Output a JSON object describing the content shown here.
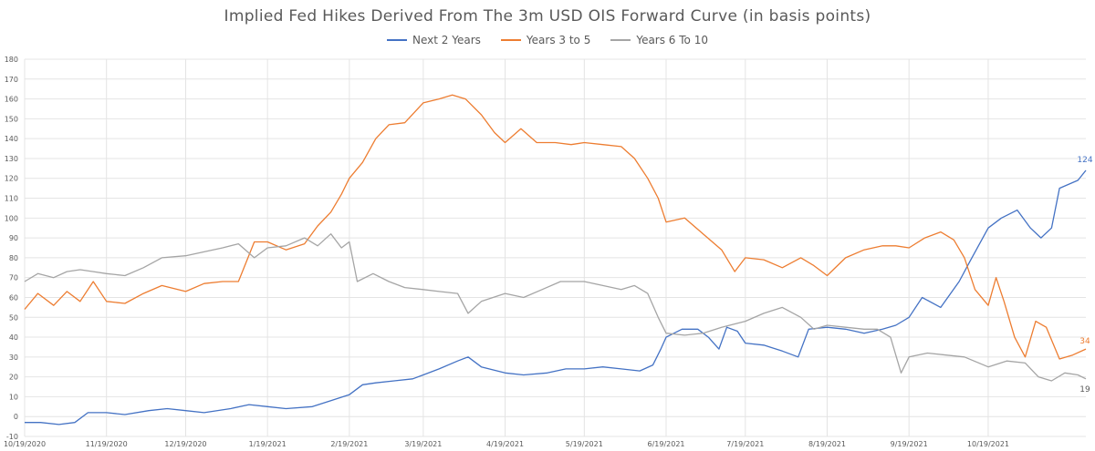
{
  "chart_data": {
    "type": "line",
    "title": "Implied Fed Hikes Derived From The 3m USD OIS Forward Curve (in basis points)",
    "xlabel": "",
    "ylabel": "",
    "ylim": [
      -10,
      180
    ],
    "y_ticks": [
      "180",
      "170",
      "160",
      "150",
      "140",
      "130",
      "120",
      "110",
      "100",
      "90",
      "80",
      "70",
      "60",
      "50",
      "40",
      "30",
      "20",
      "10",
      "0",
      "-10"
    ],
    "x_ticks": [
      "10/19/2020",
      "11/19/2020",
      "12/19/2020",
      "1/19/2021",
      "2/19/2021",
      "3/19/2021",
      "4/19/2021",
      "5/19/2021",
      "6/19/2021",
      "7/19/2021",
      "8/19/2021",
      "9/19/2021",
      "10/19/2021"
    ],
    "grid": true,
    "legend_position": "top",
    "series": [
      {
        "name": "Next 2 Years",
        "color": "#4472c4",
        "end_label": "124",
        "points": [
          [
            "2020-10-19",
            -3
          ],
          [
            "2020-10-25",
            -3
          ],
          [
            "2020-11-01",
            -4
          ],
          [
            "2020-11-07",
            -3
          ],
          [
            "2020-11-12",
            2
          ],
          [
            "2020-11-19",
            2
          ],
          [
            "2020-11-26",
            1
          ],
          [
            "2020-12-05",
            3
          ],
          [
            "2020-12-12",
            4
          ],
          [
            "2020-12-19",
            3
          ],
          [
            "2020-12-26",
            2
          ],
          [
            "2021-01-05",
            4
          ],
          [
            "2021-01-12",
            6
          ],
          [
            "2021-01-19",
            5
          ],
          [
            "2021-01-26",
            4
          ],
          [
            "2021-02-05",
            5
          ],
          [
            "2021-02-12",
            8
          ],
          [
            "2021-02-19",
            11
          ],
          [
            "2021-02-24",
            16
          ],
          [
            "2021-03-01",
            17
          ],
          [
            "2021-03-08",
            18
          ],
          [
            "2021-03-15",
            19
          ],
          [
            "2021-03-19",
            21
          ],
          [
            "2021-03-25",
            24
          ],
          [
            "2021-04-01",
            28
          ],
          [
            "2021-04-05",
            30
          ],
          [
            "2021-04-10",
            25
          ],
          [
            "2021-04-19",
            22
          ],
          [
            "2021-04-26",
            21
          ],
          [
            "2021-05-05",
            22
          ],
          [
            "2021-05-12",
            24
          ],
          [
            "2021-05-19",
            24
          ],
          [
            "2021-05-26",
            25
          ],
          [
            "2021-06-02",
            24
          ],
          [
            "2021-06-09",
            23
          ],
          [
            "2021-06-14",
            26
          ],
          [
            "2021-06-17",
            34
          ],
          [
            "2021-06-19",
            40
          ],
          [
            "2021-06-25",
            44
          ],
          [
            "2021-07-01",
            44
          ],
          [
            "2021-07-05",
            40
          ],
          [
            "2021-07-09",
            34
          ],
          [
            "2021-07-12",
            45
          ],
          [
            "2021-07-16",
            43
          ],
          [
            "2021-07-19",
            37
          ],
          [
            "2021-07-26",
            36
          ],
          [
            "2021-08-02",
            33
          ],
          [
            "2021-08-08",
            30
          ],
          [
            "2021-08-12",
            44
          ],
          [
            "2021-08-19",
            45
          ],
          [
            "2021-08-26",
            44
          ],
          [
            "2021-09-02",
            42
          ],
          [
            "2021-09-09",
            44
          ],
          [
            "2021-09-14",
            46
          ],
          [
            "2021-09-19",
            50
          ],
          [
            "2021-09-24",
            60
          ],
          [
            "2021-10-01",
            55
          ],
          [
            "2021-10-08",
            68
          ],
          [
            "2021-10-12",
            78
          ],
          [
            "2021-10-19",
            95
          ],
          [
            "2021-10-24",
            100
          ],
          [
            "2021-10-30",
            104
          ],
          [
            "2021-11-04",
            95
          ],
          [
            "2021-11-08",
            90
          ],
          [
            "2021-11-12",
            95
          ],
          [
            "2021-11-15",
            115
          ],
          [
            "2021-11-22",
            119
          ],
          [
            "2021-11-25",
            124
          ]
        ]
      },
      {
        "name": "Years 3 to 5",
        "color": "#ed7d31",
        "end_label": "34",
        "points": [
          [
            "2020-10-19",
            54
          ],
          [
            "2020-10-24",
            62
          ],
          [
            "2020-10-30",
            56
          ],
          [
            "2020-11-04",
            63
          ],
          [
            "2020-11-09",
            58
          ],
          [
            "2020-11-14",
            68
          ],
          [
            "2020-11-19",
            58
          ],
          [
            "2020-11-26",
            57
          ],
          [
            "2020-12-03",
            62
          ],
          [
            "2020-12-10",
            66
          ],
          [
            "2020-12-19",
            63
          ],
          [
            "2020-12-26",
            67
          ],
          [
            "2021-01-02",
            68
          ],
          [
            "2021-01-08",
            68
          ],
          [
            "2021-01-14",
            88
          ],
          [
            "2021-01-19",
            88
          ],
          [
            "2021-01-26",
            84
          ],
          [
            "2021-02-02",
            87
          ],
          [
            "2021-02-07",
            96
          ],
          [
            "2021-02-12",
            103
          ],
          [
            "2021-02-16",
            112
          ],
          [
            "2021-02-19",
            120
          ],
          [
            "2021-02-24",
            128
          ],
          [
            "2021-03-01",
            140
          ],
          [
            "2021-03-06",
            147
          ],
          [
            "2021-03-12",
            148
          ],
          [
            "2021-03-19",
            158
          ],
          [
            "2021-03-25",
            160
          ],
          [
            "2021-03-30",
            162
          ],
          [
            "2021-04-04",
            160
          ],
          [
            "2021-04-10",
            152
          ],
          [
            "2021-04-15",
            143
          ],
          [
            "2021-04-19",
            138
          ],
          [
            "2021-04-25",
            145
          ],
          [
            "2021-05-01",
            138
          ],
          [
            "2021-05-08",
            138
          ],
          [
            "2021-05-14",
            137
          ],
          [
            "2021-05-19",
            138
          ],
          [
            "2021-05-26",
            137
          ],
          [
            "2021-06-02",
            136
          ],
          [
            "2021-06-07",
            130
          ],
          [
            "2021-06-12",
            120
          ],
          [
            "2021-06-16",
            110
          ],
          [
            "2021-06-19",
            98
          ],
          [
            "2021-06-26",
            100
          ],
          [
            "2021-07-03",
            92
          ],
          [
            "2021-07-10",
            84
          ],
          [
            "2021-07-15",
            73
          ],
          [
            "2021-07-19",
            80
          ],
          [
            "2021-07-26",
            79
          ],
          [
            "2021-08-02",
            75
          ],
          [
            "2021-08-09",
            80
          ],
          [
            "2021-08-14",
            76
          ],
          [
            "2021-08-19",
            71
          ],
          [
            "2021-08-26",
            80
          ],
          [
            "2021-09-02",
            84
          ],
          [
            "2021-09-09",
            86
          ],
          [
            "2021-09-14",
            86
          ],
          [
            "2021-09-19",
            85
          ],
          [
            "2021-09-25",
            90
          ],
          [
            "2021-10-01",
            93
          ],
          [
            "2021-10-06",
            89
          ],
          [
            "2021-10-10",
            80
          ],
          [
            "2021-10-14",
            64
          ],
          [
            "2021-10-19",
            56
          ],
          [
            "2021-10-22",
            70
          ],
          [
            "2021-10-25",
            58
          ],
          [
            "2021-10-29",
            40
          ],
          [
            "2021-11-02",
            30
          ],
          [
            "2021-11-06",
            48
          ],
          [
            "2021-11-10",
            45
          ],
          [
            "2021-11-15",
            29
          ],
          [
            "2021-11-20",
            31
          ],
          [
            "2021-11-25",
            34
          ]
        ]
      },
      {
        "name": "Years 6 To 10",
        "color": "#a5a5a5",
        "end_label": "19",
        "points": [
          [
            "2020-10-19",
            68
          ],
          [
            "2020-10-24",
            72
          ],
          [
            "2020-10-30",
            70
          ],
          [
            "2020-11-04",
            73
          ],
          [
            "2020-11-09",
            74
          ],
          [
            "2020-11-14",
            73
          ],
          [
            "2020-11-19",
            72
          ],
          [
            "2020-11-26",
            71
          ],
          [
            "2020-12-03",
            75
          ],
          [
            "2020-12-10",
            80
          ],
          [
            "2020-12-19",
            81
          ],
          [
            "2020-12-26",
            83
          ],
          [
            "2021-01-02",
            85
          ],
          [
            "2021-01-08",
            87
          ],
          [
            "2021-01-14",
            80
          ],
          [
            "2021-01-19",
            85
          ],
          [
            "2021-01-26",
            86
          ],
          [
            "2021-02-02",
            90
          ],
          [
            "2021-02-07",
            86
          ],
          [
            "2021-02-12",
            92
          ],
          [
            "2021-02-16",
            85
          ],
          [
            "2021-02-19",
            88
          ],
          [
            "2021-02-22",
            68
          ],
          [
            "2021-02-28",
            72
          ],
          [
            "2021-03-06",
            68
          ],
          [
            "2021-03-12",
            65
          ],
          [
            "2021-03-19",
            64
          ],
          [
            "2021-03-25",
            63
          ],
          [
            "2021-04-01",
            62
          ],
          [
            "2021-04-05",
            52
          ],
          [
            "2021-04-10",
            58
          ],
          [
            "2021-04-19",
            62
          ],
          [
            "2021-04-26",
            60
          ],
          [
            "2021-05-03",
            64
          ],
          [
            "2021-05-10",
            68
          ],
          [
            "2021-05-19",
            68
          ],
          [
            "2021-05-26",
            66
          ],
          [
            "2021-06-02",
            64
          ],
          [
            "2021-06-07",
            66
          ],
          [
            "2021-06-12",
            62
          ],
          [
            "2021-06-16",
            50
          ],
          [
            "2021-06-19",
            42
          ],
          [
            "2021-06-26",
            41
          ],
          [
            "2021-07-03",
            42
          ],
          [
            "2021-07-10",
            45
          ],
          [
            "2021-07-19",
            48
          ],
          [
            "2021-07-26",
            52
          ],
          [
            "2021-08-02",
            55
          ],
          [
            "2021-08-09",
            50
          ],
          [
            "2021-08-14",
            44
          ],
          [
            "2021-08-19",
            46
          ],
          [
            "2021-08-26",
            45
          ],
          [
            "2021-09-02",
            44
          ],
          [
            "2021-09-07",
            44
          ],
          [
            "2021-09-12",
            40
          ],
          [
            "2021-09-16",
            22
          ],
          [
            "2021-09-19",
            30
          ],
          [
            "2021-09-26",
            32
          ],
          [
            "2021-10-03",
            31
          ],
          [
            "2021-10-10",
            30
          ],
          [
            "2021-10-19",
            25
          ],
          [
            "2021-10-26",
            28
          ],
          [
            "2021-11-02",
            27
          ],
          [
            "2021-11-07",
            20
          ],
          [
            "2021-11-12",
            18
          ],
          [
            "2021-11-17",
            22
          ],
          [
            "2021-11-22",
            21
          ],
          [
            "2021-11-25",
            19
          ]
        ]
      }
    ]
  }
}
